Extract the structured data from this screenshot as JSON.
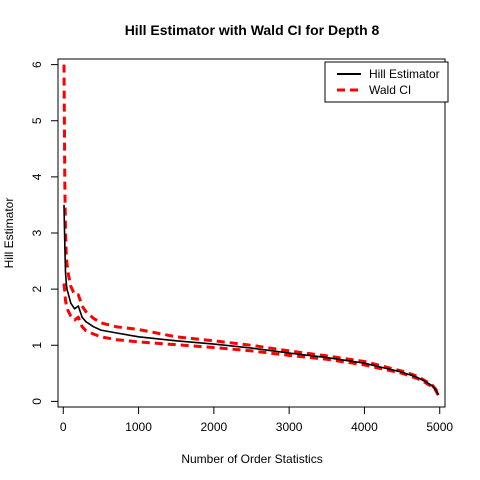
{
  "chart_data": {
    "type": "line",
    "title": "Hill Estimator with Wald CI for Depth 8",
    "xlabel": "Number of Order Statistics",
    "ylabel": "Hill Estimator",
    "xlim": [
      -70,
      5070
    ],
    "ylim": [
      -0.1,
      6.1
    ],
    "xticks": [
      0,
      1000,
      2000,
      3000,
      4000,
      5000
    ],
    "yticks": [
      0,
      1,
      2,
      3,
      4,
      5,
      6
    ],
    "grid": false,
    "legend_position": "top-right",
    "legend": [
      {
        "label": "Hill Estimator",
        "color": "#000000",
        "style": "solid"
      },
      {
        "label": "Wald CI",
        "color": "#ff0000",
        "style": "dashed"
      }
    ],
    "series": [
      {
        "name": "Hill Estimator",
        "color": "#000000",
        "style": "solid",
        "x": [
          10,
          20,
          30,
          40,
          50,
          70,
          100,
          150,
          200,
          250,
          300,
          400,
          500,
          700,
          1000,
          1500,
          2000,
          2500,
          3000,
          3500,
          4000,
          4500,
          4700,
          4800,
          4900,
          4950,
          4980
        ],
        "y": [
          3.5,
          2.8,
          2.3,
          2.1,
          2.0,
          1.9,
          1.75,
          1.65,
          1.7,
          1.5,
          1.42,
          1.33,
          1.27,
          1.22,
          1.15,
          1.08,
          1.02,
          0.95,
          0.86,
          0.78,
          0.68,
          0.52,
          0.43,
          0.36,
          0.28,
          0.2,
          0.12
        ]
      },
      {
        "name": "Wald CI",
        "color": "#ff0000",
        "style": "dashed",
        "x": [
          10,
          20,
          30,
          40,
          50,
          70,
          100,
          150,
          200,
          250,
          300,
          400,
          500,
          700,
          1000,
          1500,
          2000,
          2500,
          3000,
          3500,
          4000,
          4500,
          4700,
          4800,
          4900,
          4950,
          4980
        ],
        "y": [
          6.0,
          3.9,
          3.0,
          2.6,
          2.45,
          2.25,
          2.05,
          1.9,
          1.9,
          1.7,
          1.6,
          1.48,
          1.4,
          1.33,
          1.28,
          1.15,
          1.08,
          1.0,
          0.9,
          0.81,
          0.71,
          0.54,
          0.45,
          0.37,
          0.29,
          0.21,
          0.13
        ]
      },
      {
        "name": "Wald CI",
        "color": "#ff0000",
        "style": "dashed",
        "x": [
          10,
          20,
          30,
          40,
          50,
          70,
          100,
          150,
          200,
          250,
          300,
          400,
          500,
          700,
          1000,
          1500,
          2000,
          2500,
          3000,
          3500,
          4000,
          4500,
          4700,
          4800,
          4900,
          4950,
          4980
        ],
        "y": [
          2.1,
          1.95,
          1.8,
          1.72,
          1.66,
          1.6,
          1.52,
          1.45,
          1.5,
          1.33,
          1.26,
          1.2,
          1.15,
          1.1,
          1.06,
          1.01,
          0.96,
          0.9,
          0.82,
          0.75,
          0.65,
          0.5,
          0.41,
          0.34,
          0.26,
          0.19,
          0.11
        ]
      }
    ]
  }
}
